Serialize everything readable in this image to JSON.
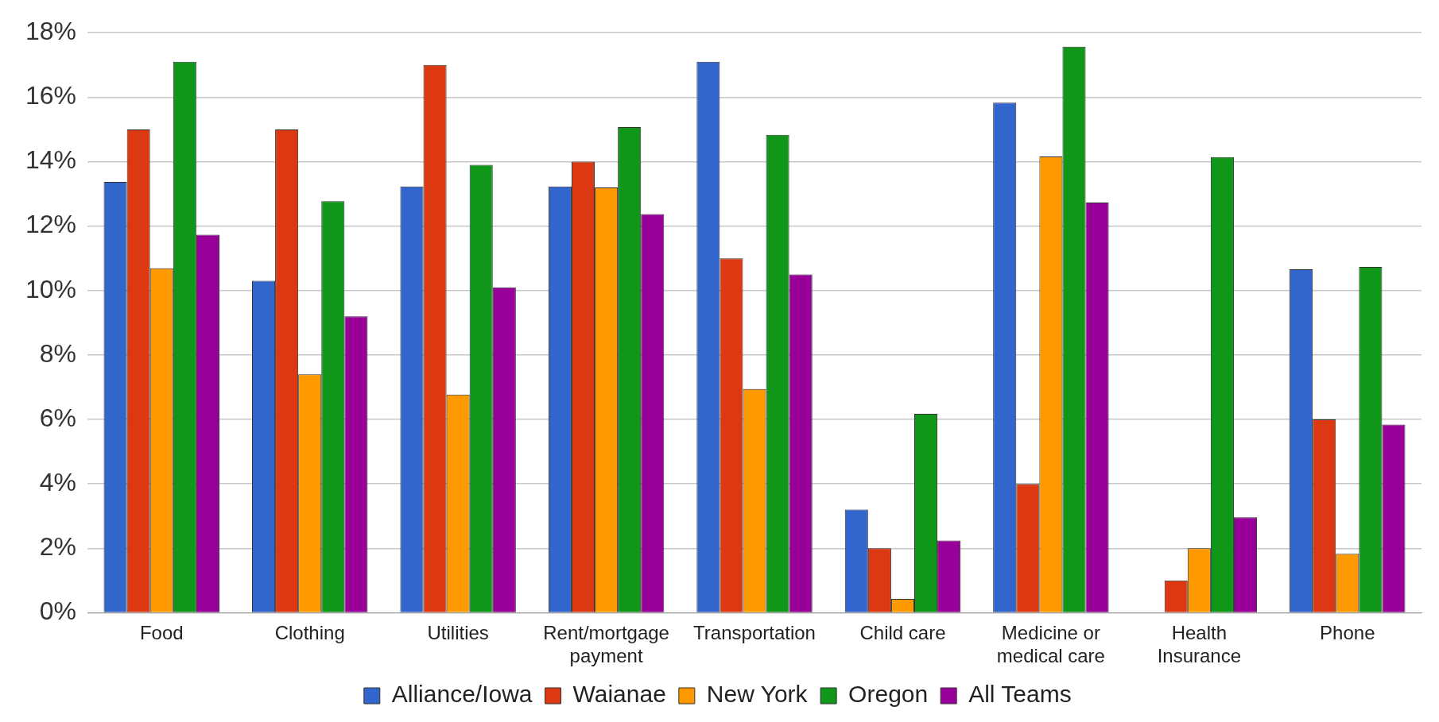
{
  "chart_data": {
    "type": "bar",
    "categories": [
      "Food",
      "Clothing",
      "Utilities",
      "Rent/mortgage payment",
      "Transportation",
      "Child care",
      "Medicine or medical care",
      "Health Insurance",
      "Phone"
    ],
    "series": [
      {
        "name": "Alliance/Iowa",
        "color": "#3366cc",
        "values": [
          13.37,
          10.3,
          13.23,
          13.23,
          17.1,
          3.2,
          15.83,
          null,
          10.66
        ]
      },
      {
        "name": "Waianae",
        "color": "#dc3912",
        "values": [
          15,
          15,
          17,
          14,
          11,
          2,
          4,
          1,
          6
        ]
      },
      {
        "name": "New York",
        "color": "#ff9900",
        "values": [
          10.69,
          7.4,
          6.77,
          13.2,
          6.94,
          0.43,
          14.16,
          2,
          1.83
        ]
      },
      {
        "name": "Oregon",
        "color": "#109618",
        "values": [
          17.1,
          12.77,
          13.9,
          15.07,
          14.83,
          6.17,
          17.57,
          14.14,
          10.73
        ]
      },
      {
        "name": "All Teams",
        "color": "#990099",
        "values": [
          11.73,
          9.2,
          10.1,
          12.37,
          10.5,
          2.24,
          12.73,
          2.96,
          5.84
        ]
      }
    ],
    "ylim": [
      0,
      18
    ],
    "yticks": [
      {
        "value": 0,
        "label": "0%"
      },
      {
        "value": 2,
        "label": "2%"
      },
      {
        "value": 4,
        "label": "4%"
      },
      {
        "value": 6,
        "label": "6%"
      },
      {
        "value": 8,
        "label": "8%"
      },
      {
        "value": 10,
        "label": "10%"
      },
      {
        "value": 12,
        "label": "12%"
      },
      {
        "value": 14,
        "label": "14%"
      },
      {
        "value": 16,
        "label": "16%"
      },
      {
        "value": 18,
        "label": "18%"
      }
    ],
    "grid": "y",
    "legend": "bottom"
  }
}
